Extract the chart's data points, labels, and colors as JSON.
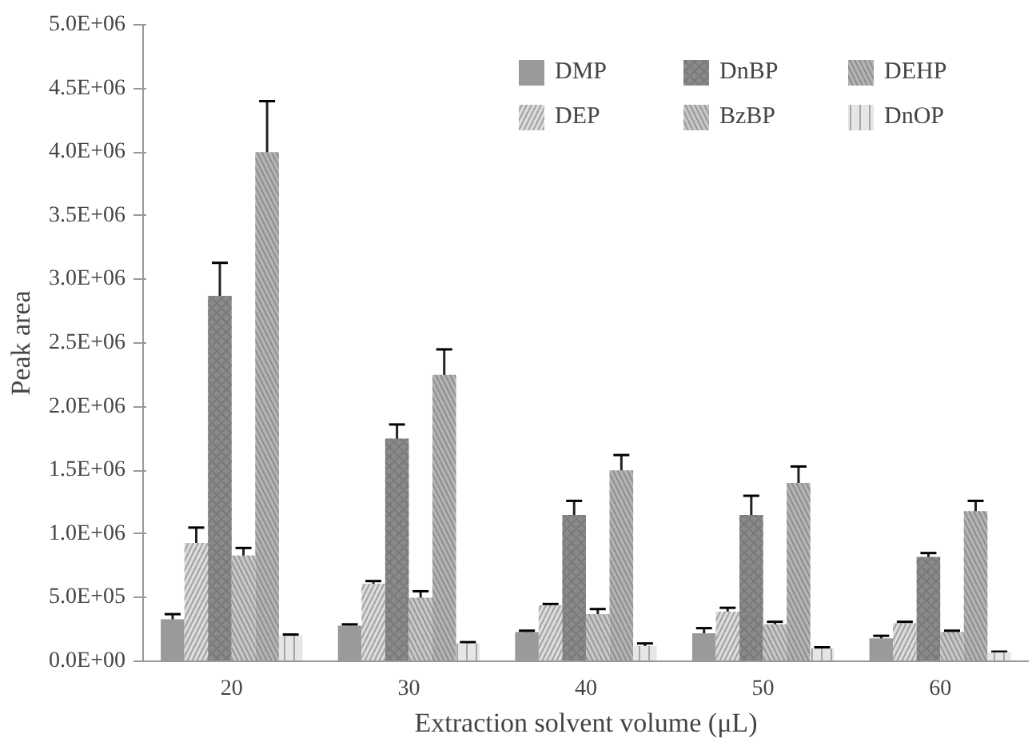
{
  "chart_data": {
    "type": "bar",
    "xlabel": "Extraction solvent volume (μL)",
    "ylabel": "Peak area",
    "categories": [
      "20",
      "30",
      "40",
      "50",
      "60"
    ],
    "series": [
      {
        "name": "DMP",
        "color": "#9a9a9a",
        "values": [
          330000,
          280000,
          230000,
          220000,
          180000
        ],
        "errors": [
          40000,
          10000,
          10000,
          40000,
          20000
        ]
      },
      {
        "name": "DEP",
        "color": "#dcdcdc",
        "values": [
          930000,
          610000,
          440000,
          390000,
          300000
        ],
        "errors": [
          120000,
          20000,
          10000,
          30000,
          10000
        ]
      },
      {
        "name": "DnBP",
        "color": "#8a8a8a",
        "values": [
          2870000,
          1750000,
          1150000,
          1150000,
          820000
        ],
        "errors": [
          260000,
          110000,
          110000,
          150000,
          30000
        ]
      },
      {
        "name": "BzBP",
        "color": "#c8c8c8",
        "values": [
          830000,
          500000,
          370000,
          290000,
          230000
        ],
        "errors": [
          60000,
          50000,
          40000,
          20000,
          10000
        ]
      },
      {
        "name": "DEHP",
        "color": "#b4b4b4",
        "values": [
          4000000,
          2250000,
          1500000,
          1400000,
          1180000
        ],
        "errors": [
          400000,
          200000,
          120000,
          130000,
          80000
        ]
      },
      {
        "name": "DnOP",
        "color": "#e6e6e6",
        "values": [
          200000,
          140000,
          120000,
          100000,
          70000
        ],
        "errors": [
          10000,
          10000,
          20000,
          10000,
          5000
        ]
      }
    ],
    "ylim": [
      0,
      5000000
    ],
    "yticks": [
      {
        "value": 0,
        "label": "0.0E+00"
      },
      {
        "value": 500000,
        "label": "5.0E+05"
      },
      {
        "value": 1000000,
        "label": "1.0E+06"
      },
      {
        "value": 1500000,
        "label": "1.5E+06"
      },
      {
        "value": 2000000,
        "label": "2.0E+06"
      },
      {
        "value": 2500000,
        "label": "2.5E+06"
      },
      {
        "value": 3000000,
        "label": "3.0E+06"
      },
      {
        "value": 3500000,
        "label": "3.5E+06"
      },
      {
        "value": 4000000,
        "label": "4.0E+06"
      },
      {
        "value": 4500000,
        "label": "4.5E+06"
      },
      {
        "value": 5000000,
        "label": "5.0E+06"
      }
    ],
    "grid": false,
    "legend": "top right"
  }
}
